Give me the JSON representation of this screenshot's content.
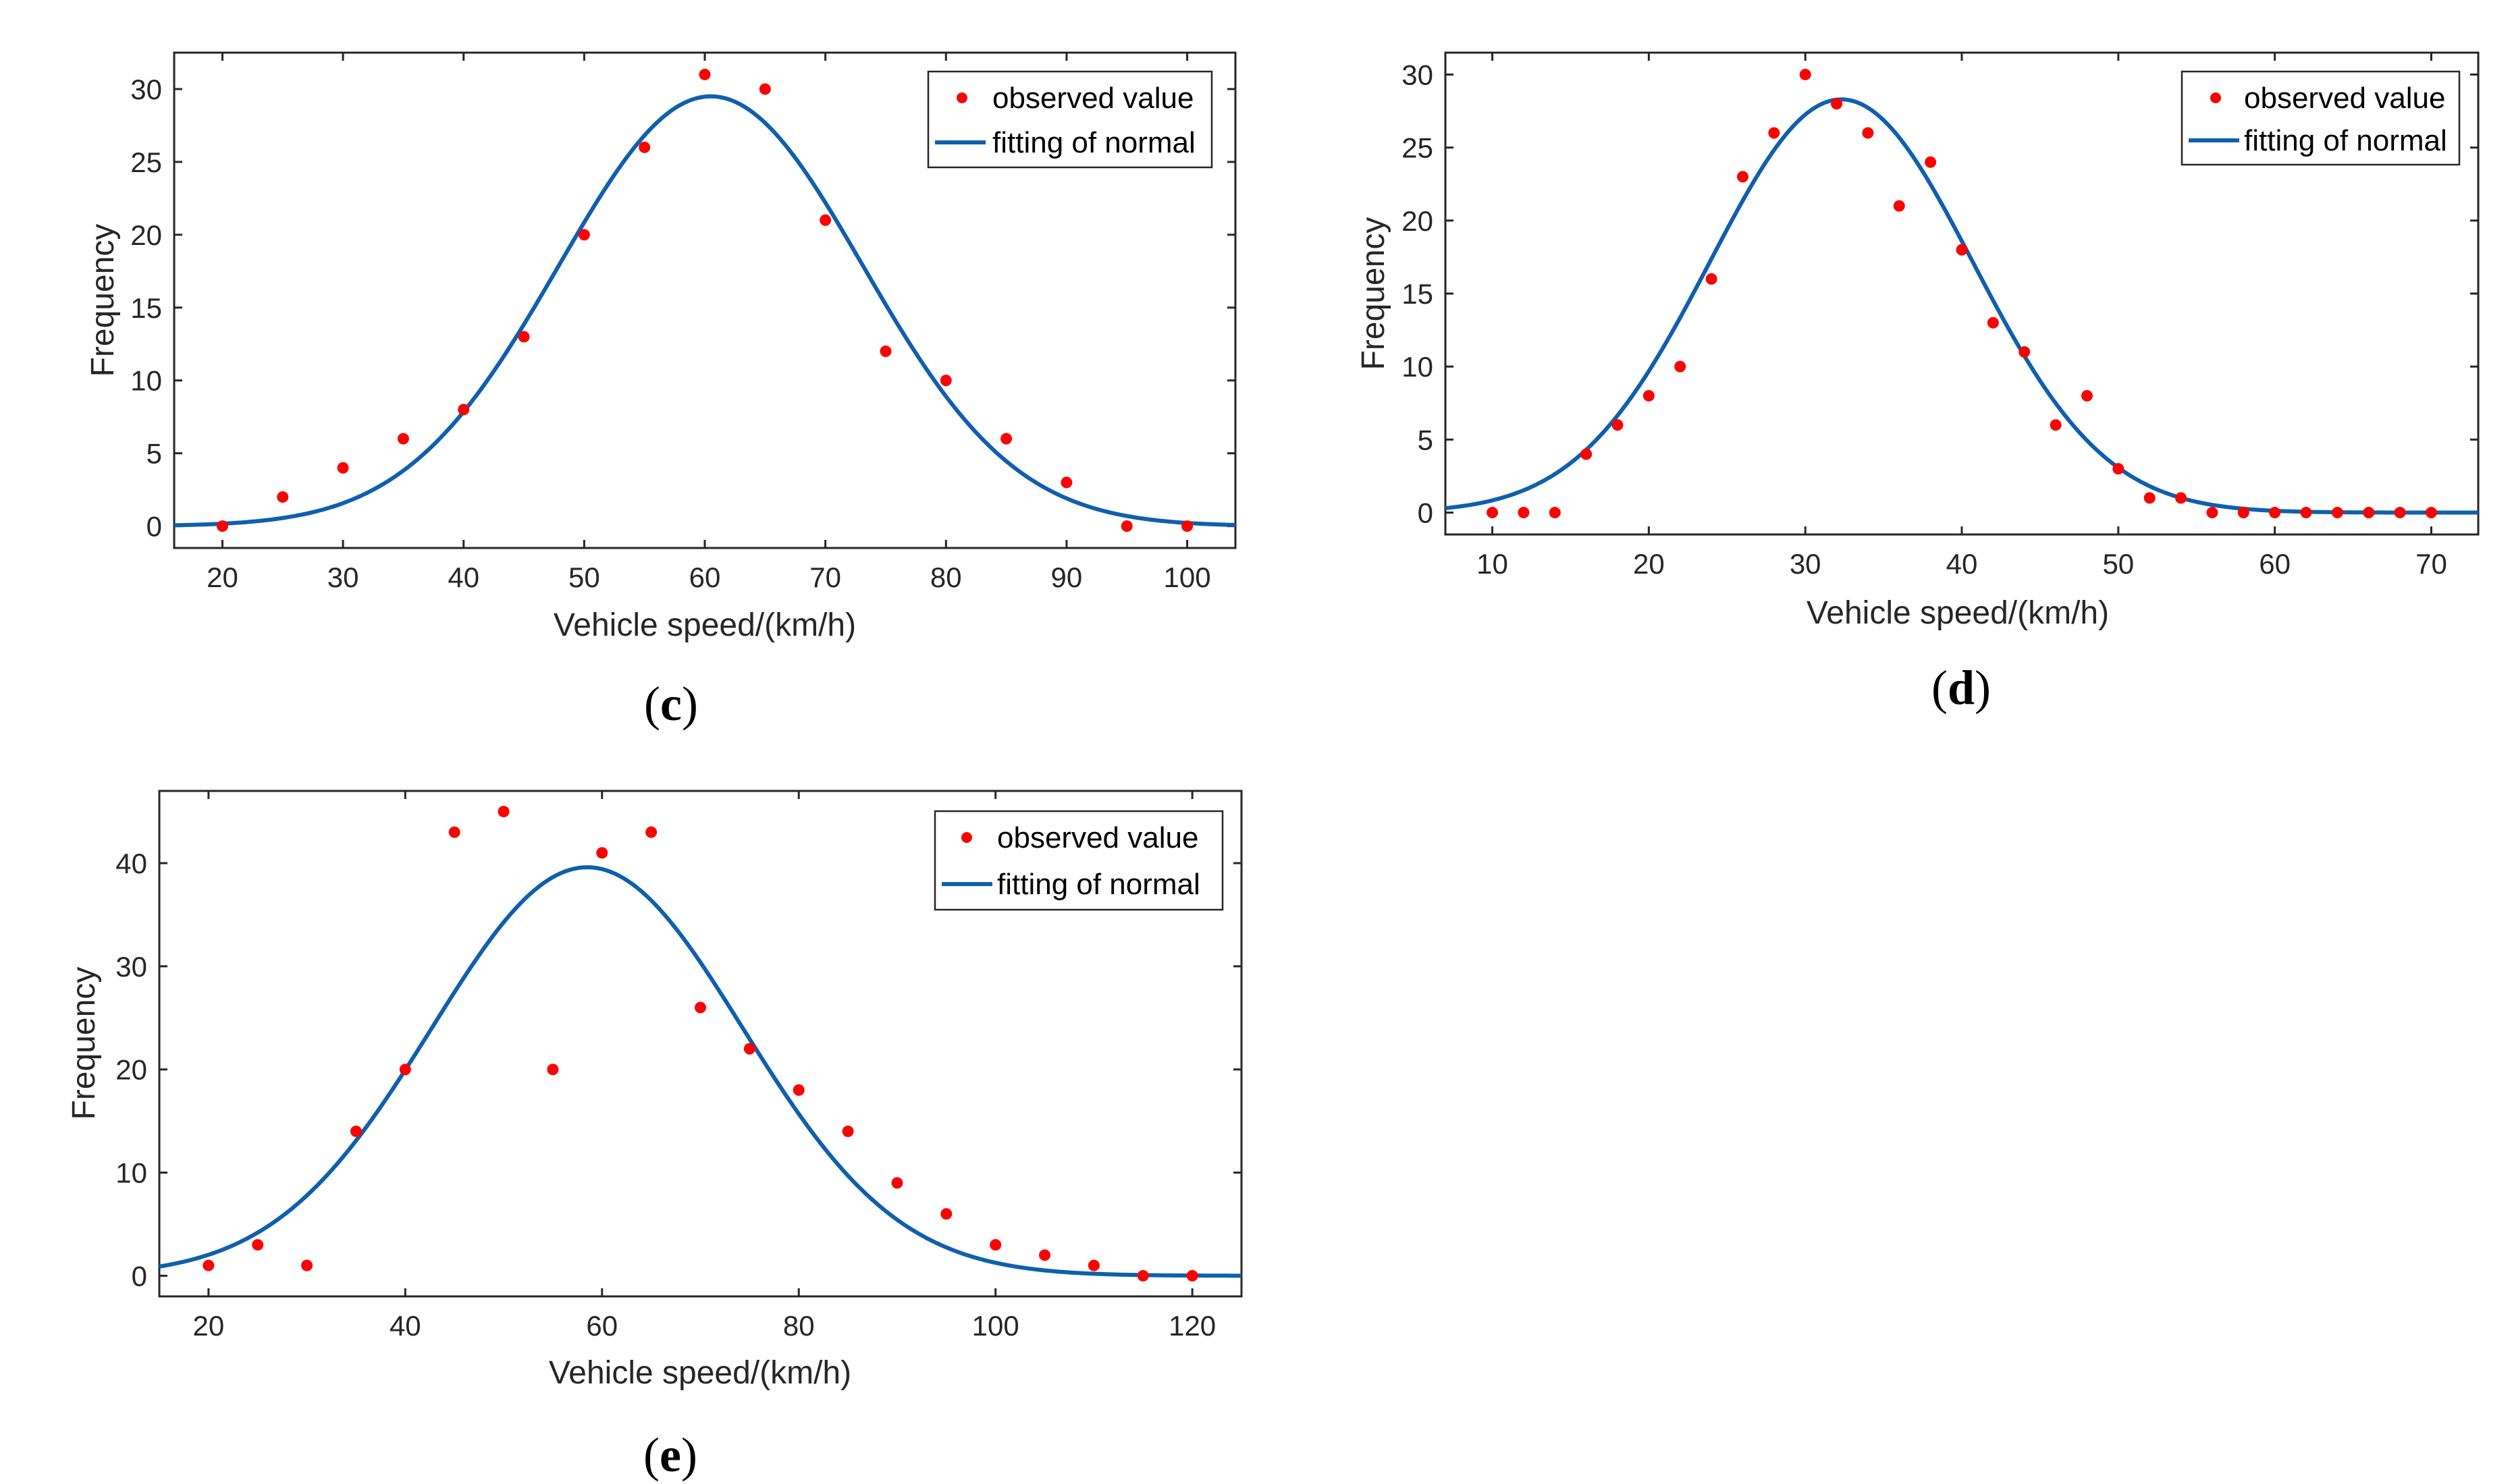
{
  "chart_data": [
    {
      "type": "scatter",
      "panel": "c",
      "caption": "(c)",
      "caption_letter": "c",
      "xlabel": "Vehicle speed/(km/h)",
      "ylabel": "Frequency",
      "xlim": [
        16,
        104
      ],
      "ylim": [
        -1.5,
        32.5
      ],
      "xticks": [
        20,
        30,
        40,
        50,
        60,
        70,
        80,
        90,
        100
      ],
      "yticks": [
        0,
        5,
        10,
        15,
        20,
        25,
        30
      ],
      "legend": {
        "position": "top-right",
        "entries": [
          "observed value",
          "fitting of normal"
        ]
      },
      "series": [
        {
          "name": "observed value",
          "kind": "points",
          "color": "#ff0000",
          "x": [
            20,
            25,
            30,
            35,
            40,
            45,
            50,
            55,
            60,
            65,
            70,
            75,
            80,
            85,
            90,
            95,
            100
          ],
          "y": [
            0,
            2,
            4,
            6,
            8,
            13,
            20,
            26,
            31,
            30,
            21,
            12,
            10,
            6,
            3,
            0,
            0
          ]
        },
        {
          "name": "fitting of normal",
          "kind": "normal-curve",
          "color": "#0f5fae",
          "mean": 60.5,
          "sd": 12.6,
          "peak": 29.5
        }
      ]
    },
    {
      "type": "scatter",
      "panel": "d",
      "caption": "(d)",
      "caption_letter": "d",
      "xlabel": "Vehicle speed/(km/h)",
      "ylabel": "Frequency",
      "xlim": [
        7,
        73
      ],
      "ylim": [
        -1.5,
        31.5
      ],
      "xticks": [
        10,
        20,
        30,
        40,
        50,
        60,
        70
      ],
      "yticks": [
        0,
        5,
        10,
        15,
        20,
        25,
        30
      ],
      "legend": {
        "position": "top-right",
        "entries": [
          "observed value",
          "fitting of normal"
        ]
      },
      "series": [
        {
          "name": "observed value",
          "kind": "points",
          "color": "#ff0000",
          "x": [
            10,
            12,
            14,
            16,
            18,
            20,
            22,
            24,
            26,
            28,
            30,
            32,
            34,
            36,
            38,
            40,
            42,
            44,
            46,
            48,
            50,
            52,
            54,
            56,
            58,
            60,
            62,
            64,
            66,
            68,
            70
          ],
          "y": [
            0,
            0,
            0,
            4,
            6,
            8,
            10,
            16,
            23,
            26,
            30,
            28,
            26,
            21,
            24,
            18,
            13,
            11,
            6,
            8,
            3,
            1,
            1,
            0,
            0,
            0,
            0,
            0,
            0,
            0,
            0
          ]
        },
        {
          "name": "fitting of normal",
          "kind": "normal-curve",
          "color": "#0f5fae",
          "mean": 32.3,
          "sd": 8.4,
          "peak": 28.3
        }
      ]
    },
    {
      "type": "scatter",
      "panel": "e",
      "caption": "(e)",
      "caption_letter": "e",
      "xlabel": "Vehicle speed/(km/h)",
      "ylabel": "Frequency",
      "xlim": [
        15,
        125
      ],
      "ylim": [
        -2,
        47
      ],
      "xticks": [
        20,
        40,
        60,
        80,
        100,
        120
      ],
      "yticks": [
        0,
        10,
        20,
        30,
        40
      ],
      "legend": {
        "position": "top-right",
        "entries": [
          "observed value",
          "fitting of normal"
        ]
      },
      "series": [
        {
          "name": "observed value",
          "kind": "points",
          "color": "#ff0000",
          "x": [
            20,
            25,
            30,
            35,
            40,
            45,
            50,
            55,
            60,
            65,
            70,
            75,
            80,
            85,
            90,
            95,
            100,
            105,
            110,
            115,
            120
          ],
          "y": [
            1,
            3,
            1,
            14,
            20,
            43,
            45,
            20,
            41,
            43,
            26,
            22,
            18,
            14,
            9,
            6,
            3,
            2,
            1,
            0,
            0
          ]
        },
        {
          "name": "fitting of normal",
          "kind": "normal-curve",
          "color": "#0f5fae",
          "mean": 58.5,
          "sd": 15.8,
          "peak": 39.6
        }
      ]
    }
  ]
}
